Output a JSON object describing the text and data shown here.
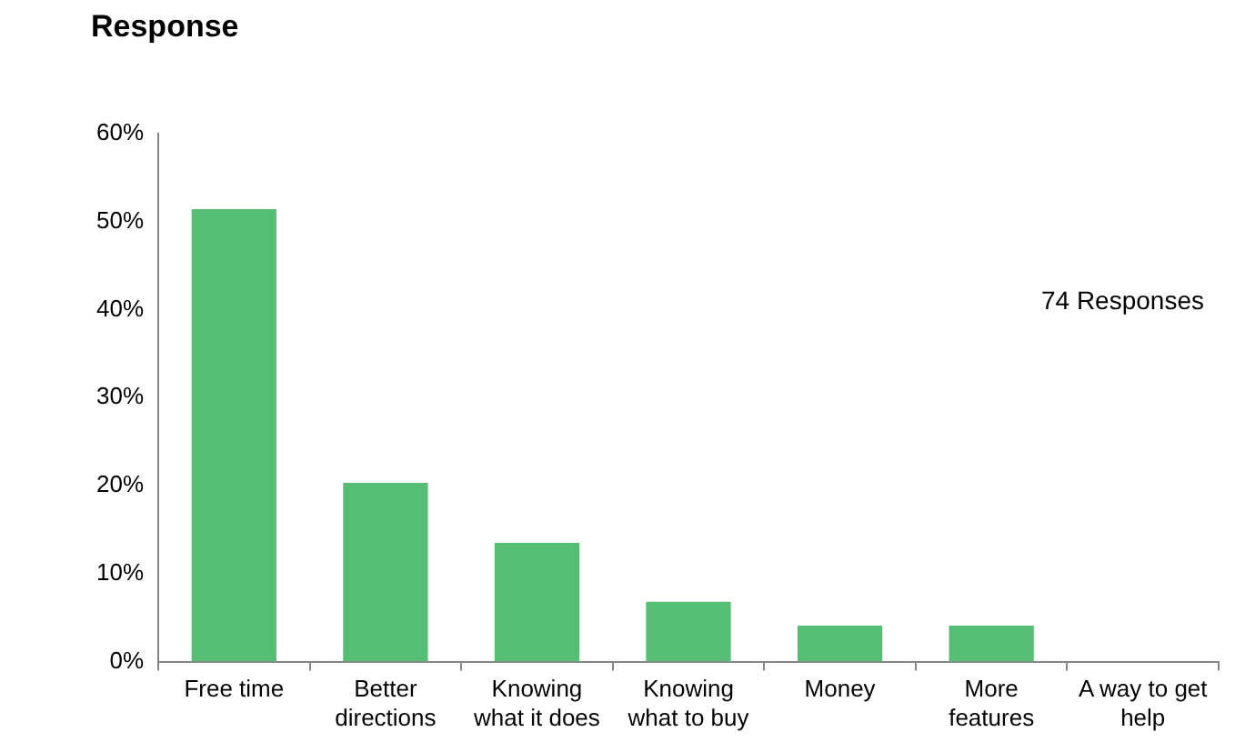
{
  "chart_data": {
    "type": "bar",
    "title": "Response",
    "categories": [
      "Free time",
      "Better directions",
      "Knowing what it does",
      "Knowing what to buy",
      "Money",
      "More features",
      "A way to get help"
    ],
    "values": [
      51.4,
      20.3,
      13.5,
      6.8,
      4.1,
      4.1,
      0
    ],
    "color": "#55bd74",
    "ylim": [
      0,
      60
    ],
    "yticks": [
      {
        "value": 0,
        "label": "0%"
      },
      {
        "value": 10,
        "label": "10%"
      },
      {
        "value": 20,
        "label": "20%"
      },
      {
        "value": 30,
        "label": "30%"
      },
      {
        "value": 40,
        "label": "40%"
      },
      {
        "value": 50,
        "label": "50%"
      },
      {
        "value": 60,
        "label": "60%"
      }
    ],
    "annotations": [
      "74 Responses"
    ],
    "grid": false,
    "legend": false
  }
}
